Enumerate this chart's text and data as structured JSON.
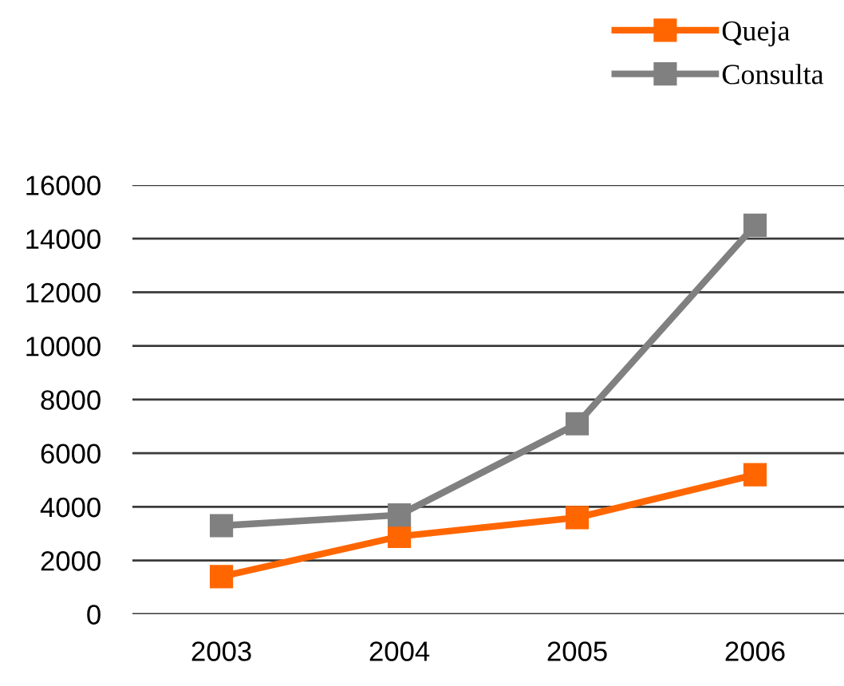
{
  "chart_data": {
    "type": "line",
    "categories": [
      "2003",
      "2004",
      "2005",
      "2006"
    ],
    "series": [
      {
        "name": "Queja",
        "color": "#ff6600",
        "values": [
          1400,
          2900,
          3600,
          5200
        ]
      },
      {
        "name": "Consulta",
        "color": "#808080",
        "values": [
          3300,
          3700,
          7100,
          14500
        ]
      }
    ],
    "ylim": [
      0,
      16000
    ],
    "yticks": [
      0,
      2000,
      4000,
      6000,
      8000,
      10000,
      12000,
      14000,
      16000
    ],
    "grid": "y",
    "legend": "top right",
    "marker": "square",
    "line_style": "solid"
  }
}
